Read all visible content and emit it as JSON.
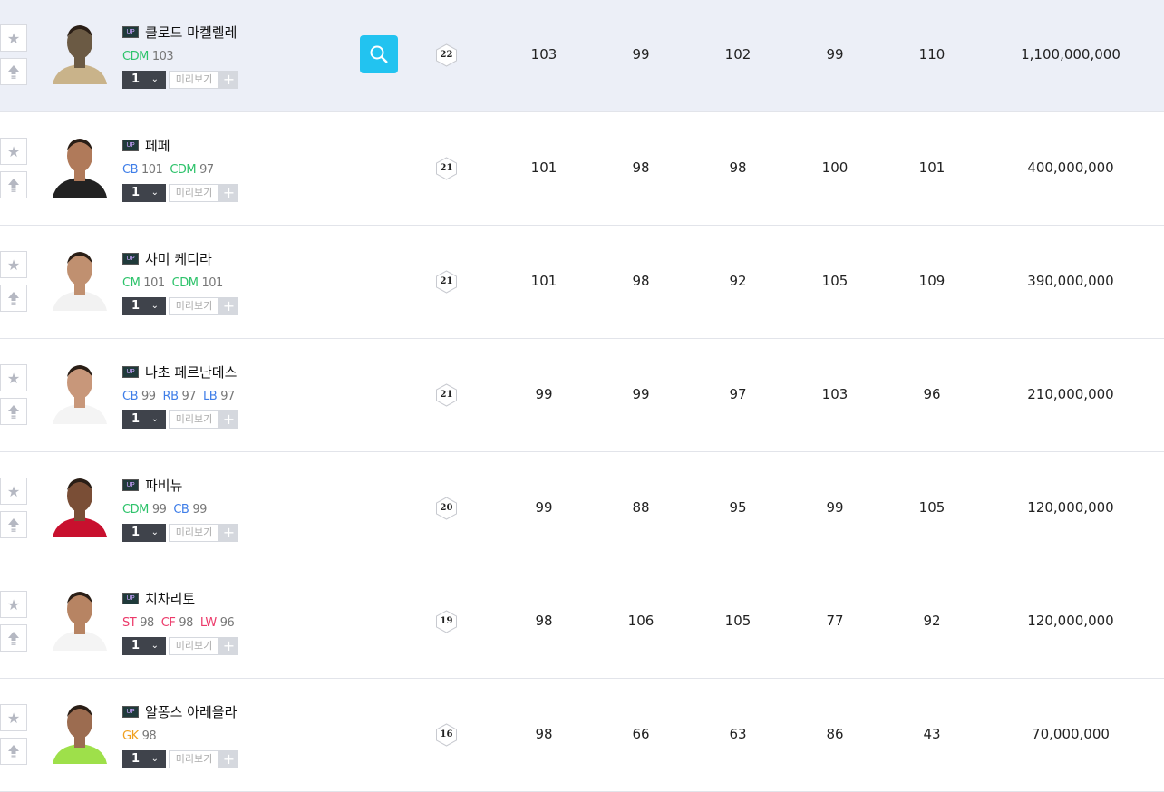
{
  "colors": {
    "CDM": "#2ec36b",
    "CM": "#2ec36b",
    "CB": "#3f7ee8",
    "RB": "#3f7ee8",
    "LB": "#3f7ee8",
    "ST": "#ec3a6a",
    "CF": "#ec3a6a",
    "LW": "#ec3a6a",
    "GK": "#f0a020",
    "search": "#22c3f0"
  },
  "labels": {
    "preview": "미리보기",
    "plus": "+",
    "season_badge": "UP"
  },
  "players": [
    {
      "name": "클로드 마켈렐레",
      "positions": [
        {
          "pos": "CDM",
          "val": "103"
        }
      ],
      "level": "1",
      "ovr": "22",
      "stats": [
        "103",
        "99",
        "102",
        "99",
        "110"
      ],
      "price": "1,100,000,000",
      "skin": "#6b5a44",
      "shirt": "#c9b38a",
      "highlighted": true
    },
    {
      "name": "페페",
      "positions": [
        {
          "pos": "CB",
          "val": "101"
        },
        {
          "pos": "CDM",
          "val": "97"
        }
      ],
      "level": "1",
      "ovr": "21",
      "stats": [
        "101",
        "98",
        "98",
        "100",
        "101"
      ],
      "price": "400,000,000",
      "skin": "#b07a5a",
      "shirt": "#222"
    },
    {
      "name": "사미 케디라",
      "positions": [
        {
          "pos": "CM",
          "val": "101"
        },
        {
          "pos": "CDM",
          "val": "101"
        }
      ],
      "level": "1",
      "ovr": "21",
      "stats": [
        "101",
        "98",
        "92",
        "105",
        "109"
      ],
      "price": "390,000,000",
      "skin": "#c09070",
      "shirt": "#f2f2f2"
    },
    {
      "name": "나초 페르난데스",
      "positions": [
        {
          "pos": "CB",
          "val": "99"
        },
        {
          "pos": "RB",
          "val": "97"
        },
        {
          "pos": "LB",
          "val": "97"
        }
      ],
      "level": "1",
      "ovr": "21",
      "stats": [
        "99",
        "99",
        "97",
        "103",
        "96"
      ],
      "price": "210,000,000",
      "skin": "#c8977a",
      "shirt": "#f4f4f4"
    },
    {
      "name": "파비뉴",
      "positions": [
        {
          "pos": "CDM",
          "val": "99"
        },
        {
          "pos": "CB",
          "val": "99"
        }
      ],
      "level": "1",
      "ovr": "20",
      "stats": [
        "99",
        "88",
        "95",
        "99",
        "105"
      ],
      "price": "120,000,000",
      "skin": "#7a4e36",
      "shirt": "#c8102e"
    },
    {
      "name": "치차리토",
      "positions": [
        {
          "pos": "ST",
          "val": "98"
        },
        {
          "pos": "CF",
          "val": "98"
        },
        {
          "pos": "LW",
          "val": "96"
        }
      ],
      "level": "1",
      "ovr": "19",
      "stats": [
        "98",
        "106",
        "105",
        "77",
        "92"
      ],
      "price": "120,000,000",
      "skin": "#b78463",
      "shirt": "#f4f4f4"
    },
    {
      "name": "알퐁스 아레올라",
      "positions": [
        {
          "pos": "GK",
          "val": "98"
        }
      ],
      "level": "1",
      "ovr": "16",
      "stats": [
        "98",
        "66",
        "63",
        "86",
        "43"
      ],
      "price": "70,000,000",
      "skin": "#9c6c50",
      "shirt": "#9ee04a"
    }
  ]
}
